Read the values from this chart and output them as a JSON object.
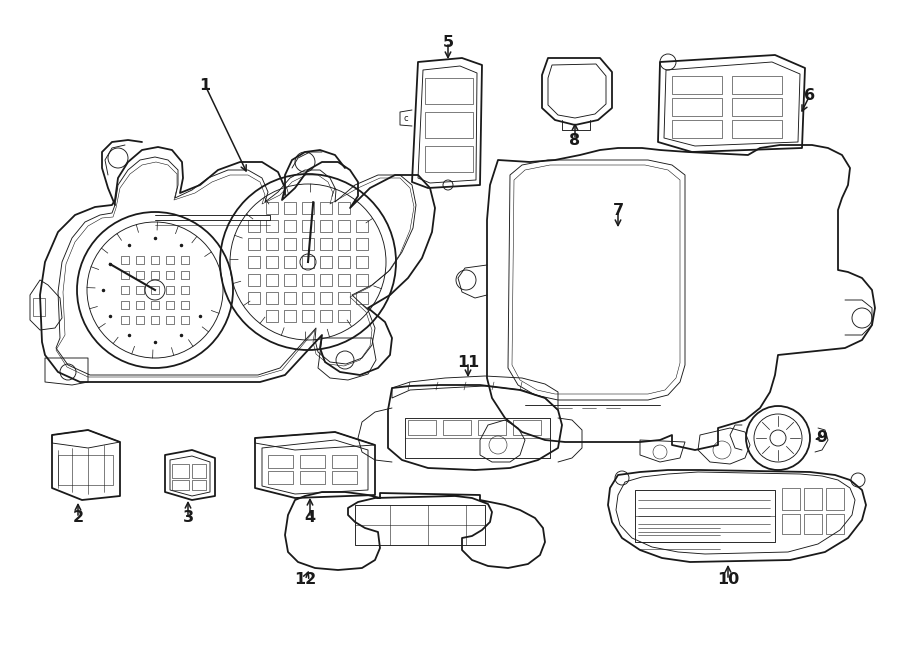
{
  "bg_color": "#ffffff",
  "line_color": "#1a1a1a",
  "fig_width": 9.0,
  "fig_height": 6.62,
  "dpi": 100,
  "lw_main": 1.3,
  "lw_thin": 0.65,
  "lw_fine": 0.4,
  "label_fontsize": 11.5,
  "arrow_lw": 1.1
}
